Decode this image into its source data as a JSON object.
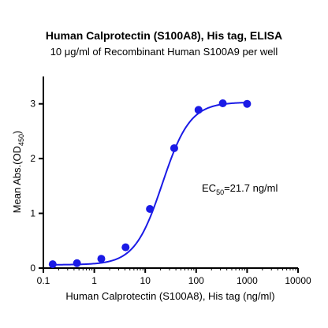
{
  "chart_data": {
    "type": "scatter",
    "title": "Human Calprotectin (S100A8), His tag, ELISA",
    "subtitle": "10 μg/ml of Recombinant Human S100A9 per well",
    "xlabel": "Human Calprotectin (S100A8), His tag (ng/ml)",
    "ylabel": {
      "main": "Mean Abs.(OD",
      "sub": "450",
      "end": ")"
    },
    "x_scale": "log",
    "xlim": [
      0.1,
      10000
    ],
    "ylim": [
      0,
      3.5
    ],
    "x_ticks": [
      0.1,
      1,
      10,
      100,
      1000,
      10000
    ],
    "x_tick_labels": [
      "0.1",
      "1",
      "10",
      "100",
      "1000",
      "10000"
    ],
    "y_ticks": [
      0,
      1,
      2,
      3
    ],
    "y_tick_labels": [
      "0",
      "1",
      "2",
      "3"
    ],
    "series": [
      {
        "points": [
          {
            "x": 0.1524,
            "y": 0.07
          },
          {
            "x": 0.457,
            "y": 0.09
          },
          {
            "x": 1.372,
            "y": 0.17
          },
          {
            "x": 4.115,
            "y": 0.38
          },
          {
            "x": 12.35,
            "y": 1.08
          },
          {
            "x": 37.04,
            "y": 2.19
          },
          {
            "x": 111.1,
            "y": 2.89
          },
          {
            "x": 333.3,
            "y": 3.01
          },
          {
            "x": 1000,
            "y": 3.0
          }
        ],
        "fit": {
          "model": "4PL",
          "bottom": 0.06,
          "top": 3.03,
          "ec50": 21.7,
          "hill": 1.6
        }
      }
    ],
    "annotation": {
      "prefix": "EC",
      "sub": "50",
      "suffix": "=21.7 ng/ml"
    },
    "colors": {
      "series": "#1a1ae6",
      "axis": "#000000"
    }
  }
}
